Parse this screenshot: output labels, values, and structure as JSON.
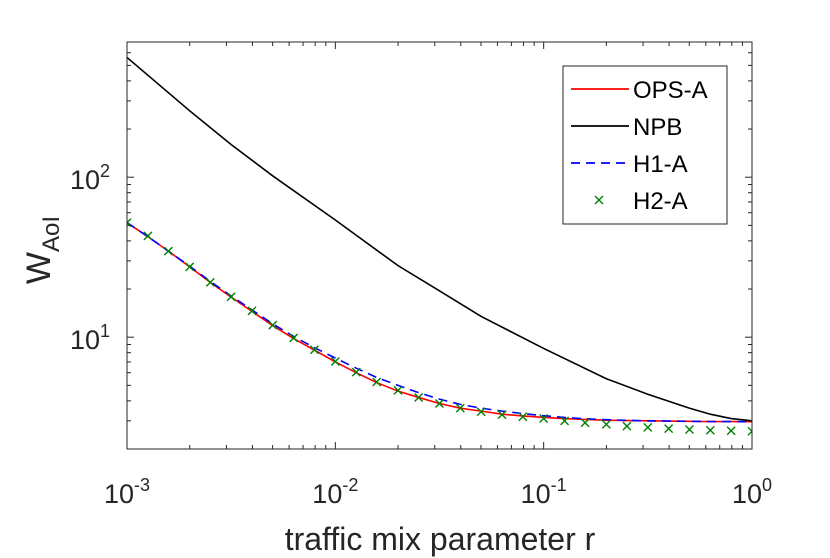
{
  "chart_data": {
    "type": "line",
    "xlabel": "traffic mix parameter r",
    "ylabel": {
      "base": "W",
      "sub": "AoI"
    },
    "xscale": "log",
    "yscale": "log",
    "xlim": [
      0.001,
      1
    ],
    "ylim": [
      2.0,
      700
    ],
    "x_ticks": [
      {
        "value": 0.001,
        "base": "10",
        "exp": "-3"
      },
      {
        "value": 0.01,
        "base": "10",
        "exp": "-2"
      },
      {
        "value": 0.1,
        "base": "10",
        "exp": "-1"
      },
      {
        "value": 1,
        "base": "10",
        "exp": "0"
      }
    ],
    "y_ticks": [
      {
        "value": 10,
        "base": "10",
        "exp": "1"
      },
      {
        "value": 100,
        "base": "10",
        "exp": "2"
      }
    ],
    "grid": false,
    "legend_position": "top-right",
    "series": [
      {
        "name": "OPS-A",
        "style": "solid",
        "color": "#ff0000",
        "x": [
          0.001,
          0.00126,
          0.00158,
          0.002,
          0.00251,
          0.00316,
          0.00398,
          0.00501,
          0.00631,
          0.00794,
          0.01,
          0.0126,
          0.0158,
          0.02,
          0.0251,
          0.0316,
          0.0398,
          0.0501,
          0.0631,
          0.0794,
          0.1,
          0.126,
          0.158,
          0.2,
          0.251,
          0.316,
          0.398,
          0.501,
          0.631,
          0.794,
          1
        ],
        "y": [
          52,
          42.5,
          34.5,
          27.5,
          22,
          17.8,
          14.5,
          11.8,
          9.8,
          8.3,
          7.0,
          6.0,
          5.2,
          4.6,
          4.2,
          3.85,
          3.6,
          3.45,
          3.3,
          3.22,
          3.15,
          3.1,
          3.06,
          3.03,
          3.01,
          3.0,
          2.99,
          2.98,
          2.97,
          2.97,
          2.96
        ]
      },
      {
        "name": "NPB",
        "style": "solid",
        "color": "#000000",
        "x": [
          0.001,
          0.002,
          0.00316,
          0.005,
          0.01,
          0.02,
          0.0316,
          0.05,
          0.1,
          0.2,
          0.316,
          0.5,
          0.631,
          0.794,
          1
        ],
        "y": [
          560,
          260,
          160,
          102,
          54,
          28,
          19.5,
          13.5,
          8.5,
          5.5,
          4.4,
          3.6,
          3.3,
          3.1,
          3.0
        ]
      },
      {
        "name": "H1-A",
        "style": "dashed",
        "color": "#0000ff",
        "x": [
          0.001,
          0.00126,
          0.00158,
          0.002,
          0.00251,
          0.00316,
          0.00398,
          0.00501,
          0.00631,
          0.00794,
          0.01,
          0.0126,
          0.0158,
          0.02,
          0.0251,
          0.0316,
          0.0398,
          0.0501,
          0.0631,
          0.0794,
          0.1,
          0.126,
          0.158,
          0.2,
          0.251,
          0.316,
          0.398,
          0.501,
          0.631,
          0.794,
          1
        ],
        "y": [
          52,
          42.5,
          34.5,
          27.8,
          22.3,
          18.1,
          14.8,
          12.1,
          10.1,
          8.6,
          7.4,
          6.4,
          5.6,
          5.0,
          4.5,
          4.1,
          3.8,
          3.6,
          3.45,
          3.33,
          3.23,
          3.15,
          3.09,
          3.05,
          3.02,
          3.0,
          2.99,
          2.98,
          2.97,
          2.97,
          2.96
        ]
      },
      {
        "name": "H2-A",
        "style": "marker-x",
        "color": "#008000",
        "x": [
          0.001,
          0.00126,
          0.00158,
          0.002,
          0.00251,
          0.00316,
          0.00398,
          0.00501,
          0.00631,
          0.00794,
          0.01,
          0.0126,
          0.0158,
          0.02,
          0.0251,
          0.0316,
          0.0398,
          0.0501,
          0.0631,
          0.0794,
          0.1,
          0.126,
          0.158,
          0.2,
          0.251,
          0.316,
          0.398,
          0.501,
          0.631,
          0.794,
          1
        ],
        "y": [
          52,
          43,
          34.5,
          27.5,
          22,
          17.9,
          14.6,
          11.9,
          9.9,
          8.35,
          7.05,
          6.05,
          5.25,
          4.65,
          4.2,
          3.85,
          3.6,
          3.42,
          3.28,
          3.18,
          3.1,
          3.0,
          2.92,
          2.85,
          2.78,
          2.73,
          2.68,
          2.65,
          2.62,
          2.6,
          2.58
        ]
      }
    ]
  }
}
